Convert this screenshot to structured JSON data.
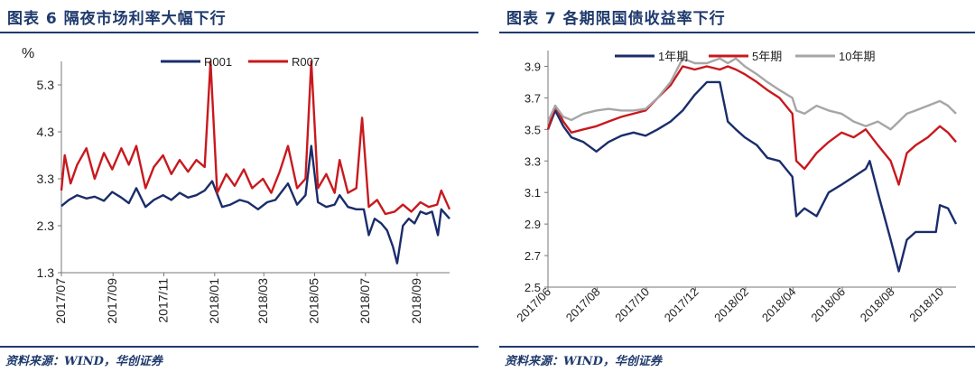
{
  "figures": [
    {
      "title": "图表 6   隔夜市场利率大幅下行",
      "source": "资料来源：WIND，华创证券"
    },
    {
      "title": "图表 7   各期限国债收益率下行",
      "source": "资料来源：WIND，华创证券"
    }
  ],
  "chart_data": [
    {
      "type": "line",
      "title": "",
      "ylabel": "%",
      "xlabel": "",
      "ylim": [
        1.3,
        5.8
      ],
      "yticks": [
        1.3,
        2.3,
        3.3,
        4.3,
        5.3
      ],
      "x_tick_labels": [
        "2017/07",
        "2017/09",
        "2017/11",
        "2018/01",
        "2018/03",
        "2018/05",
        "2018/07",
        "2018/09"
      ],
      "x_range": [
        "2017-07-01",
        "2018-10-10"
      ],
      "grid": false,
      "legend_position": "top-center",
      "series": [
        {
          "name": "R001",
          "color": "#1a2d6b",
          "points": [
            [
              "2017-07-01",
              2.72
            ],
            [
              "2017-07-10",
              2.85
            ],
            [
              "2017-07-20",
              2.95
            ],
            [
              "2017-07-31",
              2.88
            ],
            [
              "2017-08-10",
              2.92
            ],
            [
              "2017-08-21",
              2.83
            ],
            [
              "2017-08-31",
              3.02
            ],
            [
              "2017-09-11",
              2.9
            ],
            [
              "2017-09-20",
              2.78
            ],
            [
              "2017-09-29",
              3.1
            ],
            [
              "2017-10-10",
              2.7
            ],
            [
              "2017-10-20",
              2.85
            ],
            [
              "2017-10-31",
              2.95
            ],
            [
              "2017-11-10",
              2.85
            ],
            [
              "2017-11-20",
              3.0
            ],
            [
              "2017-11-30",
              2.9
            ],
            [
              "2017-12-10",
              2.95
            ],
            [
              "2017-12-20",
              3.05
            ],
            [
              "2017-12-29",
              3.25
            ],
            [
              "2018-01-10",
              2.7
            ],
            [
              "2018-01-20",
              2.75
            ],
            [
              "2018-01-31",
              2.85
            ],
            [
              "2018-02-10",
              2.8
            ],
            [
              "2018-02-22",
              2.65
            ],
            [
              "2018-03-05",
              2.8
            ],
            [
              "2018-03-15",
              2.85
            ],
            [
              "2018-03-30",
              3.2
            ],
            [
              "2018-04-10",
              2.75
            ],
            [
              "2018-04-20",
              2.95
            ],
            [
              "2018-04-27",
              4.0
            ],
            [
              "2018-05-05",
              2.8
            ],
            [
              "2018-05-15",
              2.7
            ],
            [
              "2018-05-25",
              2.75
            ],
            [
              "2018-05-31",
              2.95
            ],
            [
              "2018-06-10",
              2.7
            ],
            [
              "2018-06-20",
              2.65
            ],
            [
              "2018-06-29",
              2.65
            ],
            [
              "2018-07-05",
              2.1
            ],
            [
              "2018-07-12",
              2.45
            ],
            [
              "2018-07-20",
              2.35
            ],
            [
              "2018-07-27",
              2.2
            ],
            [
              "2018-08-03",
              1.85
            ],
            [
              "2018-08-08",
              1.5
            ],
            [
              "2018-08-15",
              2.3
            ],
            [
              "2018-08-22",
              2.45
            ],
            [
              "2018-08-29",
              2.35
            ],
            [
              "2018-09-05",
              2.6
            ],
            [
              "2018-09-12",
              2.55
            ],
            [
              "2018-09-19",
              2.6
            ],
            [
              "2018-09-26",
              2.1
            ],
            [
              "2018-09-30",
              2.65
            ],
            [
              "2018-10-10",
              2.45
            ]
          ]
        },
        {
          "name": "R007",
          "color": "#c8191e",
          "points": [
            [
              "2017-07-01",
              3.05
            ],
            [
              "2017-07-05",
              3.8
            ],
            [
              "2017-07-12",
              3.2
            ],
            [
              "2017-07-20",
              3.6
            ],
            [
              "2017-07-31",
              3.95
            ],
            [
              "2017-08-10",
              3.3
            ],
            [
              "2017-08-21",
              3.85
            ],
            [
              "2017-08-31",
              3.5
            ],
            [
              "2017-09-11",
              3.95
            ],
            [
              "2017-09-20",
              3.6
            ],
            [
              "2017-09-29",
              4.0
            ],
            [
              "2017-10-10",
              3.1
            ],
            [
              "2017-10-20",
              3.55
            ],
            [
              "2017-10-31",
              3.8
            ],
            [
              "2017-11-10",
              3.4
            ],
            [
              "2017-11-20",
              3.7
            ],
            [
              "2017-11-30",
              3.45
            ],
            [
              "2017-12-10",
              3.7
            ],
            [
              "2017-12-20",
              3.55
            ],
            [
              "2017-12-27",
              5.8
            ],
            [
              "2018-01-04",
              3.0
            ],
            [
              "2018-01-15",
              3.4
            ],
            [
              "2018-01-25",
              3.15
            ],
            [
              "2018-02-05",
              3.5
            ],
            [
              "2018-02-15",
              3.1
            ],
            [
              "2018-02-28",
              3.3
            ],
            [
              "2018-03-10",
              3.0
            ],
            [
              "2018-03-20",
              3.45
            ],
            [
              "2018-03-30",
              4.0
            ],
            [
              "2018-04-10",
              3.1
            ],
            [
              "2018-04-20",
              3.3
            ],
            [
              "2018-04-27",
              5.8
            ],
            [
              "2018-05-05",
              3.1
            ],
            [
              "2018-05-15",
              3.4
            ],
            [
              "2018-05-25",
              3.0
            ],
            [
              "2018-05-31",
              3.7
            ],
            [
              "2018-06-10",
              3.0
            ],
            [
              "2018-06-20",
              3.1
            ],
            [
              "2018-06-27",
              4.6
            ],
            [
              "2018-07-05",
              2.7
            ],
            [
              "2018-07-15",
              2.85
            ],
            [
              "2018-07-25",
              2.55
            ],
            [
              "2018-08-05",
              2.6
            ],
            [
              "2018-08-15",
              2.75
            ],
            [
              "2018-08-25",
              2.6
            ],
            [
              "2018-09-05",
              2.8
            ],
            [
              "2018-09-15",
              2.7
            ],
            [
              "2018-09-25",
              2.75
            ],
            [
              "2018-09-30",
              3.05
            ],
            [
              "2018-10-10",
              2.65
            ]
          ]
        }
      ]
    },
    {
      "type": "line",
      "title": "",
      "xlabel": "",
      "ylabel": "",
      "ylim": [
        2.5,
        4.0
      ],
      "yticks": [
        2.5,
        2.7,
        2.9,
        3.1,
        3.3,
        3.5,
        3.7,
        3.9
      ],
      "x_tick_labels": [
        "2017/06",
        "2017/08",
        "2017/10",
        "2017/12",
        "2018/02",
        "2018/04",
        "2018/06",
        "2018/08",
        "2018/10"
      ],
      "x_range": [
        "2017-06-01",
        "2018-10-20"
      ],
      "grid": false,
      "legend_position": "top-center",
      "series": [
        {
          "name": "1年期",
          "color": "#1a2d6b",
          "points": [
            [
              "2017-06-01",
              3.5
            ],
            [
              "2017-06-10",
              3.62
            ],
            [
              "2017-06-20",
              3.52
            ],
            [
              "2017-06-30",
              3.45
            ],
            [
              "2017-07-15",
              3.42
            ],
            [
              "2017-07-31",
              3.36
            ],
            [
              "2017-08-15",
              3.42
            ],
            [
              "2017-08-31",
              3.46
            ],
            [
              "2017-09-15",
              3.48
            ],
            [
              "2017-09-30",
              3.46
            ],
            [
              "2017-10-15",
              3.5
            ],
            [
              "2017-10-31",
              3.55
            ],
            [
              "2017-11-15",
              3.62
            ],
            [
              "2017-11-30",
              3.72
            ],
            [
              "2017-12-15",
              3.8
            ],
            [
              "2017-12-31",
              3.8
            ],
            [
              "2018-01-10",
              3.55
            ],
            [
              "2018-01-20",
              3.5
            ],
            [
              "2018-01-31",
              3.45
            ],
            [
              "2018-02-15",
              3.4
            ],
            [
              "2018-02-28",
              3.32
            ],
            [
              "2018-03-15",
              3.3
            ],
            [
              "2018-03-31",
              3.2
            ],
            [
              "2018-04-05",
              2.95
            ],
            [
              "2018-04-15",
              3.0
            ],
            [
              "2018-04-30",
              2.95
            ],
            [
              "2018-05-15",
              3.1
            ],
            [
              "2018-05-31",
              3.15
            ],
            [
              "2018-06-15",
              3.2
            ],
            [
              "2018-06-30",
              3.25
            ],
            [
              "2018-07-05",
              3.3
            ],
            [
              "2018-07-15",
              3.1
            ],
            [
              "2018-07-31",
              2.8
            ],
            [
              "2018-08-10",
              2.6
            ],
            [
              "2018-08-20",
              2.8
            ],
            [
              "2018-08-31",
              2.85
            ],
            [
              "2018-09-15",
              2.85
            ],
            [
              "2018-09-25",
              2.85
            ],
            [
              "2018-09-30",
              3.02
            ],
            [
              "2018-10-10",
              3.0
            ],
            [
              "2018-10-20",
              2.9
            ]
          ]
        },
        {
          "name": "5年期",
          "color": "#c8191e",
          "points": [
            [
              "2017-06-01",
              3.5
            ],
            [
              "2017-06-10",
              3.65
            ],
            [
              "2017-06-20",
              3.55
            ],
            [
              "2017-06-30",
              3.48
            ],
            [
              "2017-07-15",
              3.5
            ],
            [
              "2017-07-31",
              3.52
            ],
            [
              "2017-08-15",
              3.55
            ],
            [
              "2017-08-31",
              3.58
            ],
            [
              "2017-09-15",
              3.6
            ],
            [
              "2017-09-30",
              3.62
            ],
            [
              "2017-10-15",
              3.7
            ],
            [
              "2017-10-31",
              3.78
            ],
            [
              "2017-11-15",
              3.9
            ],
            [
              "2017-11-30",
              3.88
            ],
            [
              "2017-12-15",
              3.9
            ],
            [
              "2017-12-31",
              3.88
            ],
            [
              "2018-01-10",
              3.9
            ],
            [
              "2018-01-20",
              3.88
            ],
            [
              "2018-01-31",
              3.85
            ],
            [
              "2018-02-15",
              3.8
            ],
            [
              "2018-02-28",
              3.75
            ],
            [
              "2018-03-15",
              3.7
            ],
            [
              "2018-03-31",
              3.6
            ],
            [
              "2018-04-05",
              3.3
            ],
            [
              "2018-04-15",
              3.25
            ],
            [
              "2018-04-30",
              3.35
            ],
            [
              "2018-05-15",
              3.42
            ],
            [
              "2018-05-31",
              3.48
            ],
            [
              "2018-06-15",
              3.45
            ],
            [
              "2018-06-30",
              3.5
            ],
            [
              "2018-07-15",
              3.4
            ],
            [
              "2018-07-31",
              3.3
            ],
            [
              "2018-08-10",
              3.15
            ],
            [
              "2018-08-20",
              3.35
            ],
            [
              "2018-08-31",
              3.4
            ],
            [
              "2018-09-15",
              3.45
            ],
            [
              "2018-09-30",
              3.52
            ],
            [
              "2018-10-10",
              3.48
            ],
            [
              "2018-10-20",
              3.42
            ]
          ]
        },
        {
          "name": "10年期",
          "color": "#a6a6a6",
          "points": [
            [
              "2017-06-01",
              3.55
            ],
            [
              "2017-06-10",
              3.65
            ],
            [
              "2017-06-20",
              3.58
            ],
            [
              "2017-06-30",
              3.56
            ],
            [
              "2017-07-15",
              3.6
            ],
            [
              "2017-07-31",
              3.62
            ],
            [
              "2017-08-15",
              3.63
            ],
            [
              "2017-08-31",
              3.62
            ],
            [
              "2017-09-15",
              3.62
            ],
            [
              "2017-09-30",
              3.63
            ],
            [
              "2017-10-15",
              3.7
            ],
            [
              "2017-10-31",
              3.8
            ],
            [
              "2017-11-15",
              3.95
            ],
            [
              "2017-11-30",
              3.92
            ],
            [
              "2017-12-15",
              3.92
            ],
            [
              "2017-12-31",
              3.95
            ],
            [
              "2018-01-10",
              3.92
            ],
            [
              "2018-01-20",
              3.95
            ],
            [
              "2018-01-31",
              3.9
            ],
            [
              "2018-02-15",
              3.85
            ],
            [
              "2018-02-28",
              3.8
            ],
            [
              "2018-03-15",
              3.75
            ],
            [
              "2018-03-31",
              3.7
            ],
            [
              "2018-04-05",
              3.62
            ],
            [
              "2018-04-15",
              3.6
            ],
            [
              "2018-04-30",
              3.65
            ],
            [
              "2018-05-15",
              3.62
            ],
            [
              "2018-05-31",
              3.6
            ],
            [
              "2018-06-15",
              3.55
            ],
            [
              "2018-06-30",
              3.52
            ],
            [
              "2018-07-15",
              3.55
            ],
            [
              "2018-07-31",
              3.5
            ],
            [
              "2018-08-10",
              3.55
            ],
            [
              "2018-08-20",
              3.6
            ],
            [
              "2018-08-31",
              3.62
            ],
            [
              "2018-09-15",
              3.65
            ],
            [
              "2018-09-30",
              3.68
            ],
            [
              "2018-10-10",
              3.65
            ],
            [
              "2018-10-20",
              3.6
            ]
          ]
        }
      ]
    }
  ]
}
